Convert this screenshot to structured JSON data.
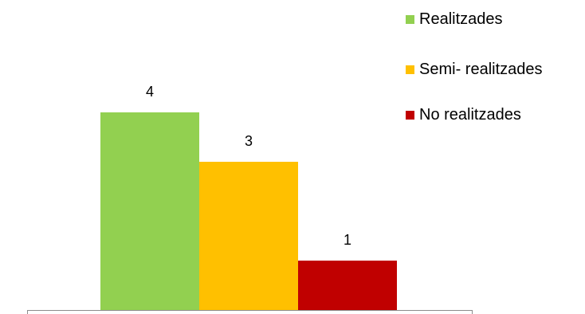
{
  "chart_data": {
    "type": "bar",
    "categories": [
      "Realitzades",
      "Semi- realitzades",
      "No realitzades"
    ],
    "values": [
      4,
      3,
      1
    ],
    "data_labels": [
      "4",
      "3",
      "1"
    ],
    "colors": [
      "#92D050",
      "#FFC000",
      "#C00000"
    ],
    "title": "",
    "xlabel": "",
    "ylabel": "",
    "ylim": [
      0,
      4.5
    ],
    "grid": false,
    "legend_position": "top-right"
  },
  "legend": {
    "items": [
      {
        "label": "Realitzades",
        "color": "#92D050"
      },
      {
        "label": "Semi- realitzades",
        "color": "#FFC000"
      },
      {
        "label": "No realitzades",
        "color": "#C00000"
      }
    ]
  }
}
